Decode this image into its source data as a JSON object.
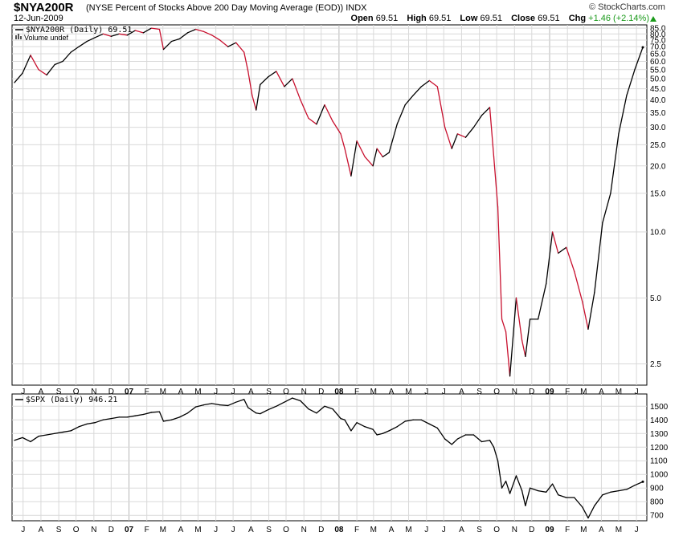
{
  "header": {
    "symbol": "$NYA200R",
    "description": "(NYSE Percent of Stocks Above 200 Day Moving Average (EOD))",
    "exchange": "INDX",
    "date": "12-Jun-2009",
    "brand": "© StockCharts.com",
    "open_label": "Open",
    "open": "69.51",
    "high_label": "High",
    "high": "69.51",
    "low_label": "Low",
    "low": "69.51",
    "close_label": "Close",
    "close": "69.51",
    "chg_label": "Chg",
    "chg": "+1.46 (+2.14%)",
    "chg_color": "#1a9a1a"
  },
  "upper_legend": "$NYA200R (Daily) 69.51",
  "volume_legend": "Volume undef",
  "lower_legend": "$SPX (Daily) 946.21",
  "x_labels": [
    "J",
    "A",
    "S",
    "O",
    "N",
    "D",
    "07",
    "F",
    "M",
    "A",
    "M",
    "J",
    "J",
    "A",
    "S",
    "O",
    "N",
    "D",
    "08",
    "F",
    "M",
    "A",
    "M",
    "J",
    "J",
    "A",
    "S",
    "O",
    "N",
    "D",
    "09",
    "F",
    "M",
    "A",
    "M",
    "J"
  ],
  "colors": {
    "up": "#000000",
    "down": "#c8102e",
    "grid": "#d9d9d9"
  },
  "chart_data": [
    {
      "type": "line",
      "title": "$NYA200R (Daily)",
      "scale": "log",
      "y_ticks": [
        2.5,
        5.0,
        10.0,
        15.0,
        20.0,
        25.0,
        30.0,
        35.0,
        40.0,
        45.0,
        50.0,
        55.0,
        60.0,
        65.0,
        70.0,
        75.0,
        80.0,
        85.0
      ],
      "ylim": [
        2.0,
        88.0
      ],
      "series": [
        {
          "x": [
            "2006-06-16",
            "2006-06-30",
            "2006-07-14",
            "2006-07-28",
            "2006-08-11",
            "2006-08-25",
            "2006-09-08",
            "2006-09-22",
            "2006-10-06",
            "2006-10-20",
            "2006-11-03",
            "2006-11-17",
            "2006-12-01",
            "2006-12-15",
            "2006-12-29",
            "2007-01-12",
            "2007-01-26",
            "2007-02-09",
            "2007-02-23",
            "2007-03-02",
            "2007-03-16",
            "2007-03-30",
            "2007-04-13",
            "2007-04-27",
            "2007-05-11",
            "2007-05-25",
            "2007-06-08",
            "2007-06-22",
            "2007-07-06",
            "2007-07-20",
            "2007-07-27",
            "2007-08-03",
            "2007-08-10",
            "2007-08-17",
            "2007-08-31",
            "2007-09-14",
            "2007-09-28",
            "2007-10-12",
            "2007-10-26",
            "2007-11-09",
            "2007-11-23",
            "2007-12-07",
            "2007-12-21",
            "2008-01-04",
            "2008-01-11",
            "2008-01-22",
            "2008-02-01",
            "2008-02-15",
            "2008-02-29",
            "2008-03-07",
            "2008-03-17",
            "2008-03-28",
            "2008-04-11",
            "2008-04-25",
            "2008-05-09",
            "2008-05-23",
            "2008-06-06",
            "2008-06-20",
            "2008-07-03",
            "2008-07-15",
            "2008-07-25",
            "2008-08-08",
            "2008-08-22",
            "2008-09-05",
            "2008-09-19",
            "2008-09-26",
            "2008-10-03",
            "2008-10-10",
            "2008-10-17",
            "2008-10-24",
            "2008-11-04",
            "2008-11-14",
            "2008-11-20",
            "2008-11-28",
            "2008-12-12",
            "2008-12-26",
            "2009-01-06",
            "2009-01-16",
            "2009-01-30",
            "2009-02-13",
            "2009-02-27",
            "2009-03-09",
            "2009-03-20",
            "2009-04-03",
            "2009-04-17",
            "2009-05-01",
            "2009-05-15",
            "2009-05-29",
            "2009-06-12"
          ],
          "values": [
            48,
            53,
            64,
            55,
            52,
            58,
            60,
            66,
            70,
            74,
            77,
            80,
            78,
            80,
            79,
            83,
            81,
            85,
            84,
            68,
            74,
            76,
            81,
            84,
            82,
            79,
            75,
            70,
            73,
            66,
            54,
            42,
            36,
            47,
            51,
            54,
            46,
            50,
            40,
            33,
            31,
            38,
            32,
            28,
            24,
            18,
            26,
            22,
            20,
            24,
            22,
            23,
            31,
            38,
            42,
            46,
            49,
            46,
            30,
            24,
            28,
            27,
            30,
            34,
            37,
            22,
            13,
            4,
            3.5,
            2.2,
            5,
            3.2,
            2.7,
            4,
            4,
            5.8,
            10,
            8,
            8.5,
            6.6,
            4.8,
            3.6,
            5.3,
            11,
            15,
            28,
            42,
            55,
            69.51
          ]
        }
      ]
    },
    {
      "type": "line",
      "title": "$SPX (Daily)",
      "y_ticks": [
        700,
        800,
        900,
        1000,
        1100,
        1200,
        1300,
        1400,
        1500
      ],
      "ylim": [
        660,
        1590
      ],
      "series": [
        {
          "x": [
            "2006-06-16",
            "2006-06-30",
            "2006-07-14",
            "2006-07-28",
            "2006-08-11",
            "2006-08-25",
            "2006-09-08",
            "2006-09-22",
            "2006-10-06",
            "2006-10-20",
            "2006-11-03",
            "2006-11-17",
            "2006-12-01",
            "2006-12-15",
            "2006-12-29",
            "2007-01-12",
            "2007-01-26",
            "2007-02-09",
            "2007-02-23",
            "2007-03-02",
            "2007-03-16",
            "2007-03-30",
            "2007-04-13",
            "2007-04-27",
            "2007-05-11",
            "2007-05-25",
            "2007-06-08",
            "2007-06-22",
            "2007-07-06",
            "2007-07-20",
            "2007-07-27",
            "2007-08-03",
            "2007-08-10",
            "2007-08-17",
            "2007-08-31",
            "2007-09-14",
            "2007-09-28",
            "2007-10-12",
            "2007-10-26",
            "2007-11-09",
            "2007-11-23",
            "2007-12-07",
            "2007-12-21",
            "2008-01-04",
            "2008-01-11",
            "2008-01-22",
            "2008-02-01",
            "2008-02-15",
            "2008-02-29",
            "2008-03-07",
            "2008-03-17",
            "2008-03-28",
            "2008-04-11",
            "2008-04-25",
            "2008-05-09",
            "2008-05-23",
            "2008-06-06",
            "2008-06-20",
            "2008-07-03",
            "2008-07-15",
            "2008-07-25",
            "2008-08-08",
            "2008-08-22",
            "2008-09-05",
            "2008-09-19",
            "2008-09-26",
            "2008-10-03",
            "2008-10-10",
            "2008-10-17",
            "2008-10-24",
            "2008-11-04",
            "2008-11-14",
            "2008-11-20",
            "2008-11-28",
            "2008-12-12",
            "2008-12-26",
            "2009-01-06",
            "2009-01-16",
            "2009-01-30",
            "2009-02-13",
            "2009-02-27",
            "2009-03-09",
            "2009-03-20",
            "2009-04-03",
            "2009-04-17",
            "2009-05-01",
            "2009-05-15",
            "2009-05-29",
            "2009-06-12"
          ],
          "values": [
            1250,
            1270,
            1240,
            1280,
            1290,
            1300,
            1310,
            1320,
            1350,
            1370,
            1380,
            1400,
            1410,
            1420,
            1420,
            1430,
            1440,
            1455,
            1460,
            1390,
            1400,
            1420,
            1450,
            1495,
            1510,
            1520,
            1510,
            1505,
            1530,
            1550,
            1490,
            1470,
            1450,
            1445,
            1475,
            1500,
            1530,
            1560,
            1540,
            1480,
            1450,
            1500,
            1480,
            1410,
            1400,
            1320,
            1380,
            1350,
            1330,
            1290,
            1300,
            1320,
            1350,
            1390,
            1400,
            1400,
            1370,
            1340,
            1260,
            1220,
            1260,
            1290,
            1290,
            1240,
            1250,
            1200,
            1100,
            900,
            950,
            860,
            990,
            880,
            770,
            900,
            880,
            870,
            930,
            850,
            830,
            830,
            760,
            680,
            770,
            850,
            870,
            880,
            890,
            920,
            946.21
          ]
        }
      ]
    }
  ]
}
